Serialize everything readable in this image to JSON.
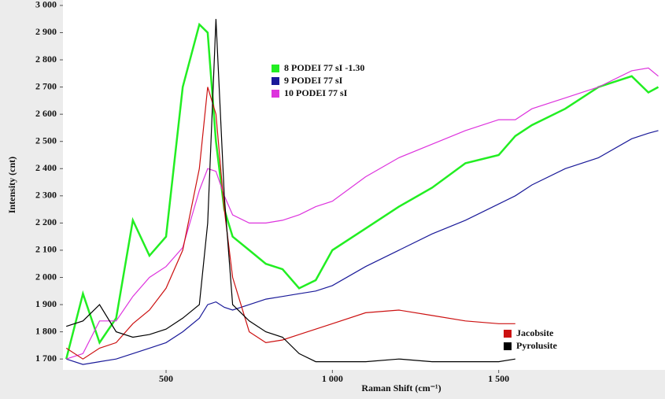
{
  "chart_data": {
    "type": "line",
    "ylabel": "Intensity (cnt)",
    "xlabel": "Raman Shift (cm⁻¹)",
    "x": [
      200,
      250,
      300,
      350,
      400,
      450,
      500,
      550,
      600,
      625,
      650,
      675,
      700,
      750,
      800,
      850,
      900,
      950,
      1000,
      1100,
      1200,
      1300,
      1400,
      1500,
      1550,
      1600,
      1700,
      1800,
      1900,
      1950,
      1980
    ],
    "series": [
      {
        "name": "8 PODEI 77 sI -1.30",
        "color": "#22ee22",
        "values": [
          1700,
          1940,
          1760,
          1850,
          2210,
          2080,
          2150,
          2700,
          2930,
          2900,
          2500,
          2250,
          2150,
          2100,
          2050,
          2030,
          1960,
          1990,
          2100,
          2180,
          2260,
          2330,
          2420,
          2450,
          2520,
          2560,
          2620,
          2700,
          2740,
          2680,
          2700
        ]
      },
      {
        "name": "9 PODEI 77 sI",
        "color": "#1a1a99",
        "values": [
          1700,
          1680,
          1690,
          1700,
          1720,
          1740,
          1760,
          1800,
          1850,
          1900,
          1910,
          1890,
          1880,
          1900,
          1920,
          1930,
          1940,
          1950,
          1970,
          2040,
          2100,
          2160,
          2210,
          2270,
          2300,
          2340,
          2400,
          2440,
          2510,
          2530,
          2540
        ]
      },
      {
        "name": "10 PODEI 77 sI",
        "color": "#dd33dd",
        "values": [
          1700,
          1720,
          1840,
          1840,
          1930,
          2000,
          2040,
          2110,
          2320,
          2400,
          2390,
          2300,
          2230,
          2200,
          2200,
          2210,
          2230,
          2260,
          2280,
          2370,
          2440,
          2490,
          2540,
          2580,
          2580,
          2620,
          2660,
          2700,
          2760,
          2770,
          2740
        ]
      },
      {
        "name": "Jacobsite",
        "color": "#cc1111",
        "values": [
          1740,
          1700,
          1740,
          1760,
          1830,
          1880,
          1960,
          2100,
          2400,
          2700,
          2600,
          2250,
          2000,
          1800,
          1760,
          1770,
          1790,
          1810,
          1830,
          1870,
          1880,
          1860,
          1840,
          1830,
          1830,
          null,
          null,
          null,
          null,
          null,
          null
        ]
      },
      {
        "name": "Pyrolusite",
        "color": "#000000",
        "values": [
          1820,
          1840,
          1900,
          1800,
          1780,
          1790,
          1810,
          1850,
          1900,
          2200,
          2950,
          2300,
          1900,
          1840,
          1800,
          1780,
          1720,
          1690,
          1690,
          1690,
          1700,
          1690,
          1690,
          1690,
          1700,
          null,
          null,
          null,
          null,
          null,
          null
        ]
      }
    ],
    "xlim": [
      190,
      2000
    ],
    "ylim": [
      1660,
      3020
    ],
    "xticks": [
      500,
      {
        "value": 1000,
        "label": "1 000"
      },
      {
        "value": 1500,
        "label": "1 500"
      }
    ],
    "yticks": [
      {
        "value": 1700,
        "label": "1 700"
      },
      {
        "value": 1800,
        "label": "1 800"
      },
      {
        "value": 1900,
        "label": "1 900"
      },
      {
        "value": 2000,
        "label": "2 000"
      },
      {
        "value": 2100,
        "label": "2 100"
      },
      {
        "value": 2200,
        "label": "2 200"
      },
      {
        "value": 2300,
        "label": "2 300"
      },
      {
        "value": 2400,
        "label": "2 400"
      },
      {
        "value": 2500,
        "label": "2 500"
      },
      {
        "value": 2600,
        "label": "2 600"
      },
      {
        "value": 2700,
        "label": "2 700"
      },
      {
        "value": 2800,
        "label": "2 800"
      },
      {
        "value": 2900,
        "label": "2 900"
      },
      {
        "value": 3000,
        "label": "3 000"
      }
    ]
  }
}
